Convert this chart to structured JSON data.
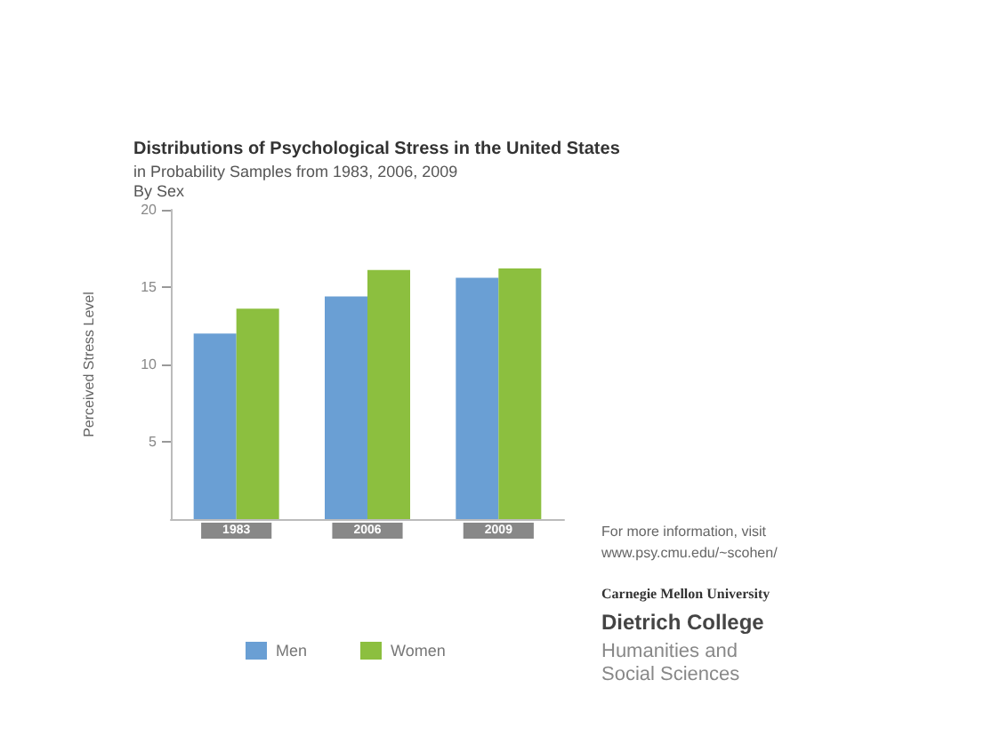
{
  "chart_data": {
    "type": "bar",
    "title": "Distributions of Psychological Stress in the United States",
    "subtitle": "in Probability Samples from 1983, 2006, 2009\nBy Sex",
    "ylabel": "Perceived Stress Level",
    "categories": [
      "1983",
      "2006",
      "2009"
    ],
    "series": [
      {
        "name": "Men",
        "color": "#6a9fd4",
        "values": [
          12.0,
          14.4,
          15.6
        ]
      },
      {
        "name": "Women",
        "color": "#8cbf3f",
        "values": [
          13.6,
          16.1,
          16.2
        ]
      }
    ],
    "ylim": [
      0,
      20
    ],
    "yticks": [
      5,
      10,
      15,
      20
    ],
    "grid": false,
    "legend": "bottom left",
    "annotations": [
      "For more information, visit\nwww.psy.cmu.edu/~scohen/",
      "Carnegie Mellon University",
      "Dietrich College",
      "Humanities and\nSocial Sciences"
    ]
  }
}
